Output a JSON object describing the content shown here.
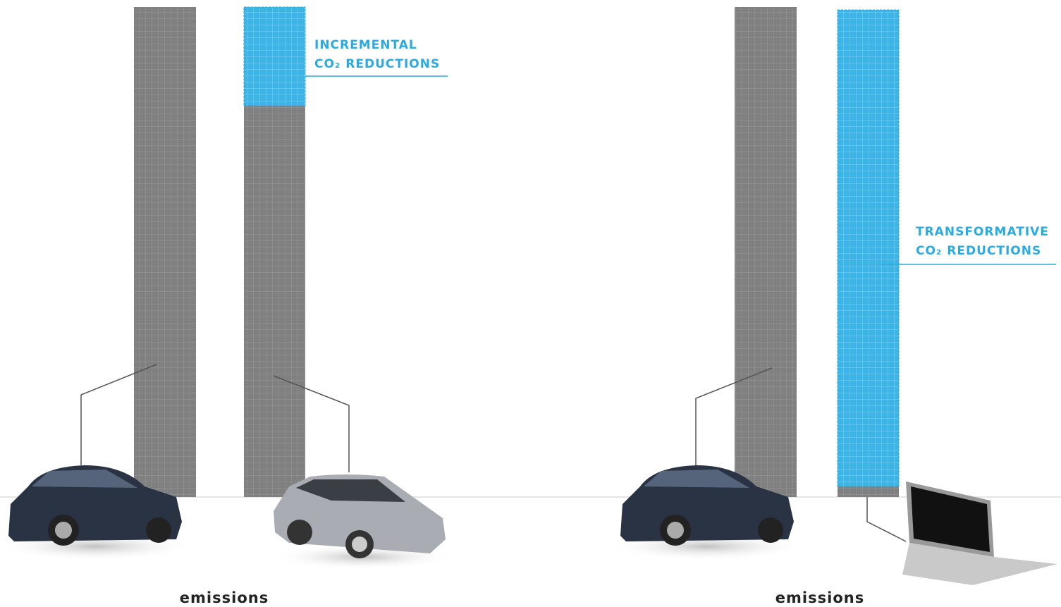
{
  "annotations": [
    {
      "lines": [
        "INCREMENTAL",
        "CO₂ REDUCTIONS"
      ]
    },
    {
      "lines": [
        "TRANSFORMATIVE",
        "CO₂ REDUCTIONS"
      ]
    }
  ],
  "labels": [
    "emissions",
    "emissions"
  ]
}
